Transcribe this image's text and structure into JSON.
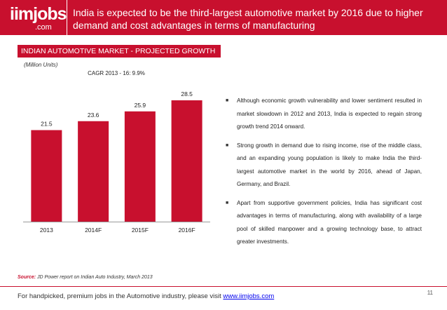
{
  "header": {
    "logo_brand": "iimjobs",
    "logo_tld": ".com",
    "headline": "India is expected to be the third-largest automotive market by 2016 due to higher demand and cost advantages in terms of manufacturing"
  },
  "section_title": "INDIAN AUTOMOTIVE MARKET - PROJECTED GROWTH",
  "units_label": "(Million Units)",
  "chart_data": {
    "type": "bar",
    "title": "",
    "annotation": "CAGR 2013 - 16: 9.9%",
    "categories": [
      "2013",
      "2014F",
      "2015F",
      "2016F"
    ],
    "values": [
      21.5,
      23.6,
      25.9,
      28.5
    ],
    "ylabel": "Million Units",
    "xlabel": "",
    "ylim": [
      0,
      29
    ],
    "grid": false,
    "bar_color": "#c8102e"
  },
  "bullets": [
    "Although economic growth vulnerability and lower sentiment resulted in market slowdown in 2012 and 2013, India is expected to regain strong growth trend 2014 onward.",
    "Strong growth in demand due to rising income, rise of the middle class, and an expanding young population is likely to make India the third-largest automotive market in the world by 2016, ahead of Japan, Germany, and Brazil.",
    "Apart from supportive government policies, India has significant cost advantages in terms of manufacturing, along with availability of a large pool of skilled manpower and a growing technology base, to attract greater investments."
  ],
  "bullet_marker": "■",
  "source": {
    "label": "Source:",
    "text": "JD Power report on Indian Auto Industry, March 2013"
  },
  "footer": {
    "text": "For handpicked, premium jobs in the Automotive industry, please visit",
    "link": "www.iimjobs.com"
  },
  "page_number": "11",
  "colors": {
    "accent": "#c8102e",
    "text": "#222222"
  }
}
